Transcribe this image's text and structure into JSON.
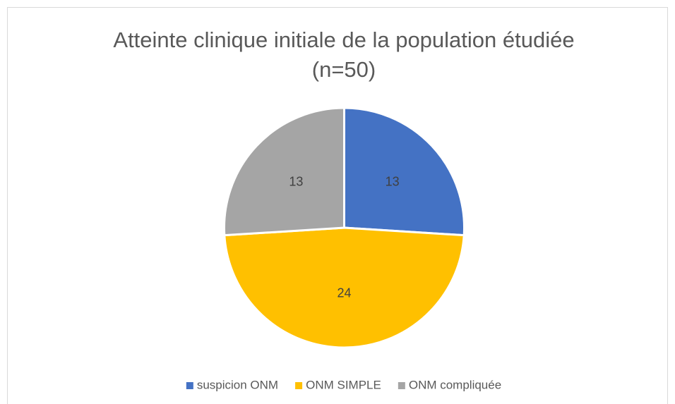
{
  "chart_data": {
    "type": "pie",
    "title": [
      "Atteinte clinique initiale de la population étudiée",
      "(n=50)"
    ],
    "categories": [
      "suspicion ONM",
      "ONM SIMPLE",
      "ONM compliquée"
    ],
    "values": [
      13,
      24,
      13
    ],
    "colors": [
      "#4472c4",
      "#ffc000",
      "#a5a5a5"
    ],
    "legend": "bottom"
  }
}
